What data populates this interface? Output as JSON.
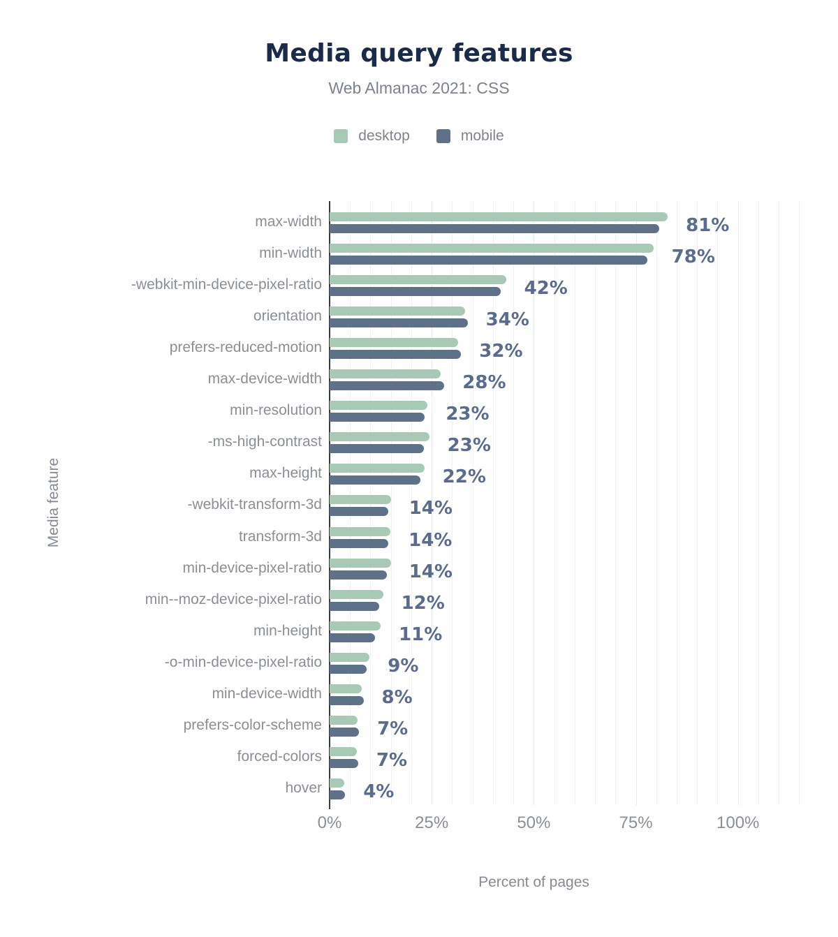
{
  "title": "Media query features",
  "subtitle": "Web Almanac 2021: CSS",
  "legend": {
    "items": [
      {
        "label": "desktop",
        "color": "#a8c9b6"
      },
      {
        "label": "mobile",
        "color": "#5f7188"
      }
    ]
  },
  "axes": {
    "xlabel": "Percent of pages",
    "ylabel": "Media feature",
    "x_ticks": [
      "0%",
      "25%",
      "50%",
      "75%",
      "100%"
    ]
  },
  "colors": {
    "background": "#ffffff",
    "title": "#1a2b49",
    "subtitle": "#7b828e",
    "axis_line": "#373c47",
    "gridline_minor": "#f0f2f4",
    "gridline_major": "#e9ecef",
    "category_label": "#8a8f96",
    "tick_label": "#8a8f96",
    "axis_title": "#868b93",
    "value_label": "#5a6b8c",
    "desktop": "#a8c9b6",
    "mobile": "#5f7188"
  },
  "chart_data": {
    "type": "bar",
    "orientation": "horizontal",
    "title": "Media query features",
    "subtitle": "Web Almanac 2021: CSS",
    "xlabel": "Percent of pages",
    "ylabel": "Media feature",
    "xlim": [
      0,
      118
    ],
    "x_tick_values": [
      0,
      25,
      50,
      75,
      100
    ],
    "grid": "vertical minor gridlines every 5%",
    "legend_position": "top",
    "categories": [
      "max-width",
      "min-width",
      "-webkit-min-device-pixel-ratio",
      "orientation",
      "prefers-reduced-motion",
      "max-device-width",
      "min-resolution",
      "-ms-high-contrast",
      "max-height",
      "-webkit-transform-3d",
      "transform-3d",
      "min-device-pixel-ratio",
      "min--moz-device-pixel-ratio",
      "min-height",
      "-o-min-device-pixel-ratio",
      "min-device-width",
      "prefers-color-scheme",
      "forced-colors",
      "hover"
    ],
    "series": [
      {
        "name": "desktop",
        "color": "#a8c9b6",
        "values": [
          82.8,
          79.3,
          43.2,
          33.2,
          31.4,
          27.2,
          24.0,
          24.4,
          23.2,
          15.0,
          14.9,
          15.0,
          13.1,
          12.5,
          9.8,
          7.9,
          6.9,
          6.6,
          3.6
        ]
      },
      {
        "name": "mobile",
        "color": "#5f7188",
        "values": [
          80.8,
          77.8,
          41.9,
          33.8,
          32.2,
          28.1,
          23.2,
          23.1,
          22.2,
          14.4,
          14.4,
          14.1,
          12.2,
          11.2,
          9.1,
          8.3,
          7.2,
          7.0,
          3.8
        ]
      }
    ],
    "value_labels": [
      "81%",
      "78%",
      "42%",
      "34%",
      "32%",
      "28%",
      "23%",
      "23%",
      "22%",
      "14%",
      "14%",
      "14%",
      "12%",
      "11%",
      "9%",
      "8%",
      "7%",
      "7%",
      "4%"
    ],
    "value_labels_refer_to": "mobile"
  }
}
